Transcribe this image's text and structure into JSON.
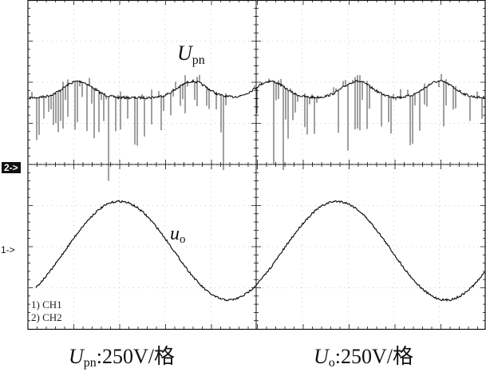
{
  "chart_data": {
    "type": "line",
    "markers": {
      "ch2": "2->",
      "ch1": "1->"
    },
    "channel_labels": [
      "1) CH1",
      "2) CH2"
    ],
    "trace_labels": {
      "upn": {
        "symbol": "U",
        "subscript": "pn"
      },
      "uo": {
        "symbol": "u",
        "subscript": "o"
      }
    },
    "captions": [
      {
        "symbol": "U",
        "subscript": "pn",
        "text": ":250V/格"
      },
      {
        "symbol": "U",
        "subscript": "o",
        "text": ":250V/格"
      }
    ],
    "grid": {
      "major_x_divisions": 2,
      "major_y_divisions": 4
    },
    "series": [
      {
        "id": "Upn",
        "description_values_in_divisions_from_center": true,
        "level": 0.85,
        "ripple_peaks_at_fraction_of_width": [
          0.11,
          0.36,
          0.53,
          0.72,
          0.9
        ],
        "ripple_peak_height": 0.25,
        "spike_depth_typical": 0.6,
        "spike_depth_max": 1.05
      },
      {
        "id": "uo",
        "description_values_in_divisions_from_center": true,
        "amplitude": 1.25,
        "offset": -0.35,
        "cycles_visible": 2.1,
        "first_peak_at_fraction_of_width": 0.2
      }
    ]
  }
}
